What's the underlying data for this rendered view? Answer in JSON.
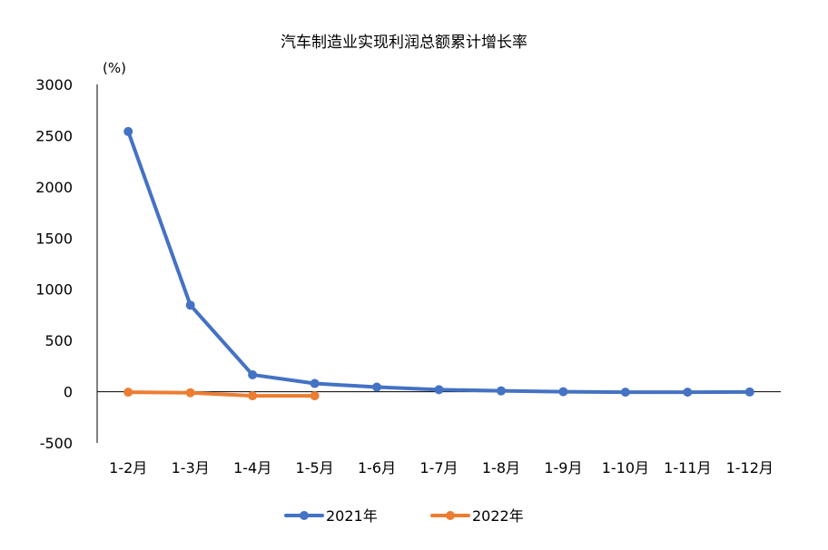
{
  "chart_data": {
    "type": "line",
    "title": "汽车制造业实现利润总额累计增长率",
    "unit_label": "(%)",
    "xlabel": "",
    "ylabel": "",
    "categories": [
      "1-2月",
      "1-3月",
      "1-4月",
      "1-5月",
      "1-6月",
      "1-7月",
      "1-8月",
      "1-9月",
      "1-10月",
      "1-11月",
      "1-12月"
    ],
    "y_ticks": [
      3000,
      2500,
      2000,
      1500,
      1000,
      500,
      0,
      -500
    ],
    "ylim": [
      -500,
      3000
    ],
    "grid": false,
    "legend_position": "bottom",
    "series": [
      {
        "name": "2021年",
        "color": "#4472C4",
        "values": [
          2540,
          845,
          165,
          80,
          45,
          20,
          8,
          0,
          -5,
          -5,
          -3
        ]
      },
      {
        "name": "2022年",
        "color": "#ED7D31",
        "values": [
          -5,
          -10,
          -40,
          -40,
          null,
          null,
          null,
          null,
          null,
          null,
          null
        ]
      }
    ]
  }
}
